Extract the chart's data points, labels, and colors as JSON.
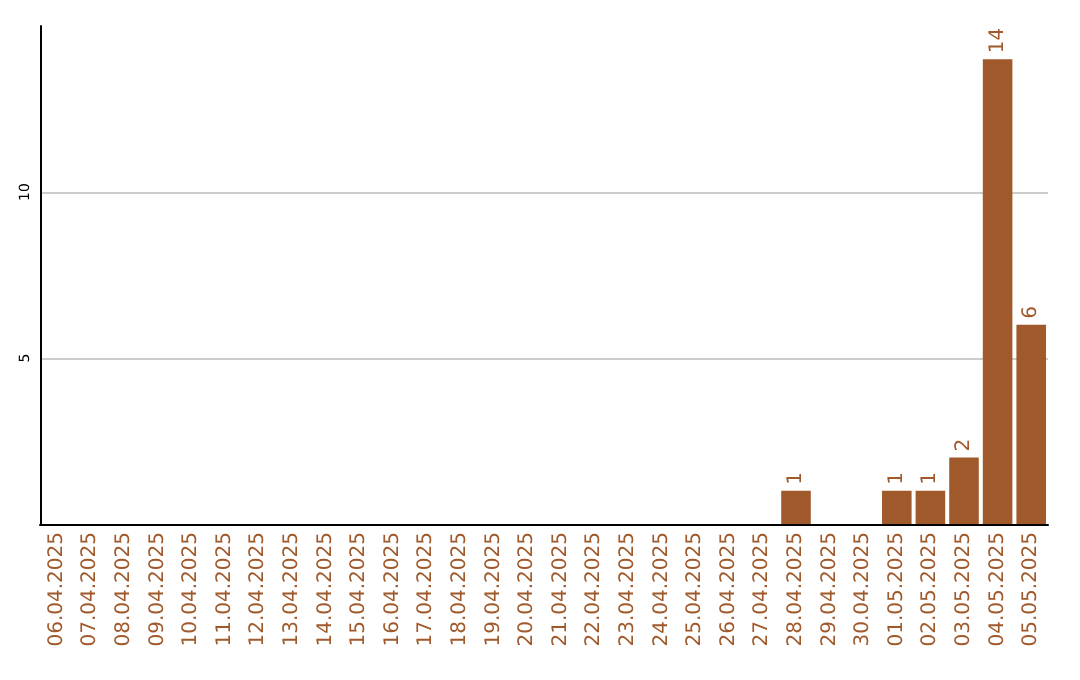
{
  "chart_data": {
    "type": "bar",
    "categories": [
      "06.04.2025",
      "07.04.2025",
      "08.04.2025",
      "09.04.2025",
      "10.04.2025",
      "11.04.2025",
      "12.04.2025",
      "13.04.2025",
      "14.04.2025",
      "15.04.2025",
      "16.04.2025",
      "17.04.2025",
      "18.04.2025",
      "19.04.2025",
      "20.04.2025",
      "21.04.2025",
      "22.04.2025",
      "23.04.2025",
      "24.04.2025",
      "25.04.2025",
      "26.04.2025",
      "27.04.2025",
      "28.04.2025",
      "29.04.2025",
      "30.04.2025",
      "01.05.2025",
      "02.05.2025",
      "03.05.2025",
      "04.05.2025",
      "05.05.2025"
    ],
    "values": [
      0,
      0,
      0,
      0,
      0,
      0,
      0,
      0,
      0,
      0,
      0,
      0,
      0,
      0,
      0,
      0,
      0,
      0,
      0,
      0,
      0,
      0,
      1,
      0,
      0,
      1,
      1,
      2,
      14,
      6
    ],
    "value_labels": [
      null,
      null,
      null,
      null,
      null,
      null,
      null,
      null,
      null,
      null,
      null,
      null,
      null,
      null,
      null,
      null,
      null,
      null,
      null,
      null,
      null,
      null,
      "1",
      null,
      null,
      "1",
      "1",
      "2",
      "14",
      "6"
    ],
    "color": "#a0592a",
    "ylim": [
      0,
      15
    ],
    "yticks": [
      5,
      10
    ],
    "grid": "y"
  }
}
